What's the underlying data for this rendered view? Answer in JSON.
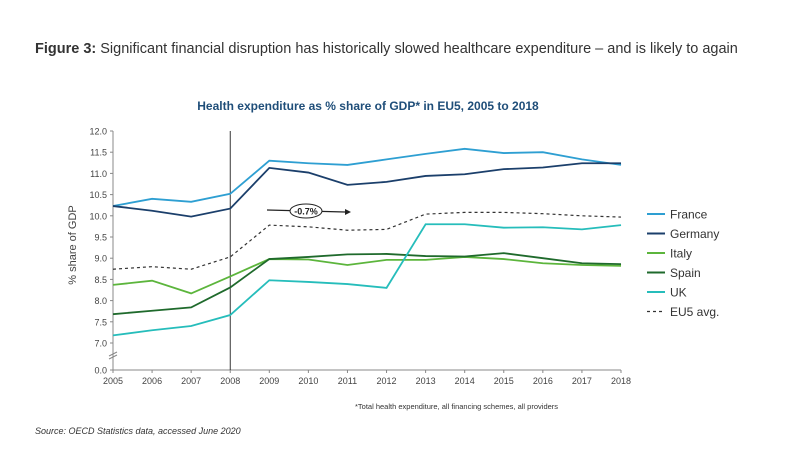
{
  "figure": {
    "label": "Figure 3:",
    "caption": "Significant financial disruption has historically slowed healthcare expenditure – and is likely to again"
  },
  "chart_data": {
    "type": "line",
    "title": "Health expenditure as % share of GDP* in EU5, 2005 to 2018",
    "xlabel": "",
    "ylabel": "% share of GDP",
    "x": [
      2005,
      2006,
      2007,
      2008,
      2009,
      2010,
      2011,
      2012,
      2013,
      2014,
      2015,
      2016,
      2017,
      2018
    ],
    "ylim": [
      7.0,
      12.0
    ],
    "y_axis_break": true,
    "yticks": [
      "0.0",
      "7.0",
      "7.5",
      "8.0",
      "8.5",
      "9.0",
      "9.5",
      "10.0",
      "10.5",
      "11.0",
      "11.5",
      "12.0"
    ],
    "grid": false,
    "legend_position": "right",
    "vertical_marker": 2008,
    "annotation": "-0.7%",
    "series": [
      {
        "name": "France",
        "color": "#2e9fd2",
        "dash": false,
        "values": [
          10.23,
          10.4,
          10.33,
          10.52,
          11.3,
          11.24,
          11.2,
          11.33,
          11.46,
          11.58,
          11.48,
          11.5,
          11.33,
          11.2
        ]
      },
      {
        "name": "Germany",
        "color": "#1b3f6b",
        "dash": false,
        "values": [
          10.23,
          10.12,
          9.98,
          10.17,
          11.13,
          11.02,
          10.73,
          10.8,
          10.94,
          10.98,
          11.1,
          11.14,
          11.24,
          11.24
        ]
      },
      {
        "name": "Italy",
        "color": "#5cb53c",
        "dash": false,
        "values": [
          8.37,
          8.47,
          8.17,
          8.57,
          8.98,
          8.97,
          8.84,
          8.96,
          8.96,
          9.03,
          8.98,
          8.88,
          8.84,
          8.82
        ]
      },
      {
        "name": "Spain",
        "color": "#1f6a2c",
        "dash": false,
        "values": [
          7.68,
          7.76,
          7.84,
          8.31,
          8.98,
          9.03,
          9.09,
          9.1,
          9.05,
          9.04,
          9.12,
          9.0,
          8.88,
          8.86
        ]
      },
      {
        "name": "UK",
        "color": "#26bdbb",
        "dash": false,
        "values": [
          7.18,
          7.3,
          7.4,
          7.66,
          8.48,
          8.44,
          8.39,
          8.3,
          9.8,
          9.8,
          9.72,
          9.73,
          9.68,
          9.78
        ]
      },
      {
        "name": "EU5 avg.",
        "color": "#333333",
        "dash": true,
        "values": [
          8.74,
          8.8,
          8.74,
          9.03,
          9.78,
          9.74,
          9.66,
          9.68,
          10.04,
          10.08,
          10.08,
          10.05,
          10.0,
          9.97
        ]
      }
    ],
    "title_color": "#1f4e79"
  },
  "footnote": "*Total health expenditure, all financing schemes, all providers",
  "source": "Source: OECD Statistics data, accessed June 2020"
}
